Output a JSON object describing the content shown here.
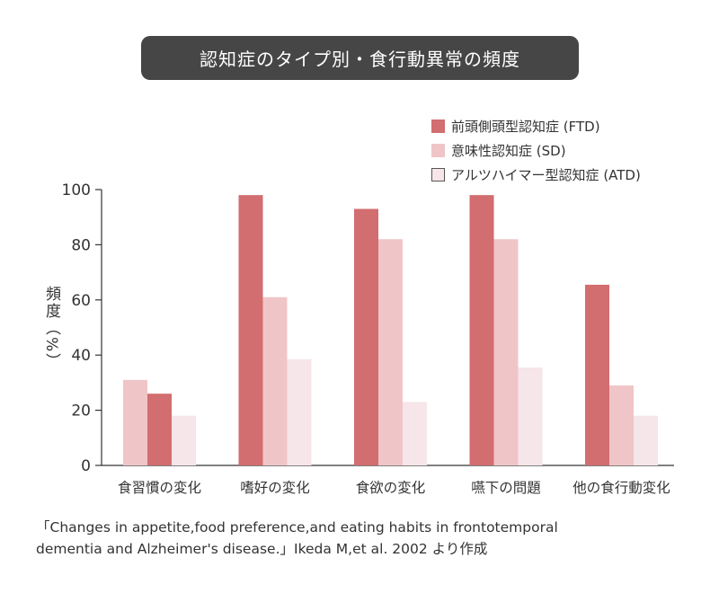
{
  "title": "認知症のタイプ別・食行動異常の頻度",
  "source_note": [
    "「Changes in appetite,food preference,and eating habits in frontotemporal",
    "dementia and Alzheimer's disease.」Ikeda M,et al. 2002 より作成"
  ],
  "chart_data": {
    "type": "bar",
    "title": "認知症のタイプ別・食行動異常の頻度",
    "xlabel": "",
    "ylabel": "頻度（%）",
    "ylim": [
      0,
      100
    ],
    "yticks": [
      0,
      20,
      40,
      60,
      80,
      100
    ],
    "grid": false,
    "legend_position": "top-right",
    "categories": [
      "食習慣の変化",
      "嗜好の変化",
      "食欲の変化",
      "嚥下の問題",
      "他の食行動変化"
    ],
    "series": [
      {
        "name": "意味性認知症 (SD)",
        "color": "#f0c5c7",
        "values": [
          31,
          61,
          82,
          82,
          29
        ]
      },
      {
        "name": "前頭側頭型認知症 (FTD)",
        "color": "#d26d70",
        "values": [
          26,
          98,
          93,
          98,
          65.5
        ]
      },
      {
        "name": "アルツハイマー型認知症 (ATD)",
        "color": "#f6e5e9",
        "values": [
          18,
          38.5,
          23,
          35.5,
          18
        ]
      }
    ],
    "series_order_by_category": [
      [
        0,
        1,
        2
      ],
      [
        1,
        0,
        2
      ],
      [
        1,
        0,
        2
      ],
      [
        1,
        0,
        2
      ],
      [
        1,
        0,
        2
      ]
    ],
    "legend_order": [
      1,
      0,
      2
    ]
  }
}
